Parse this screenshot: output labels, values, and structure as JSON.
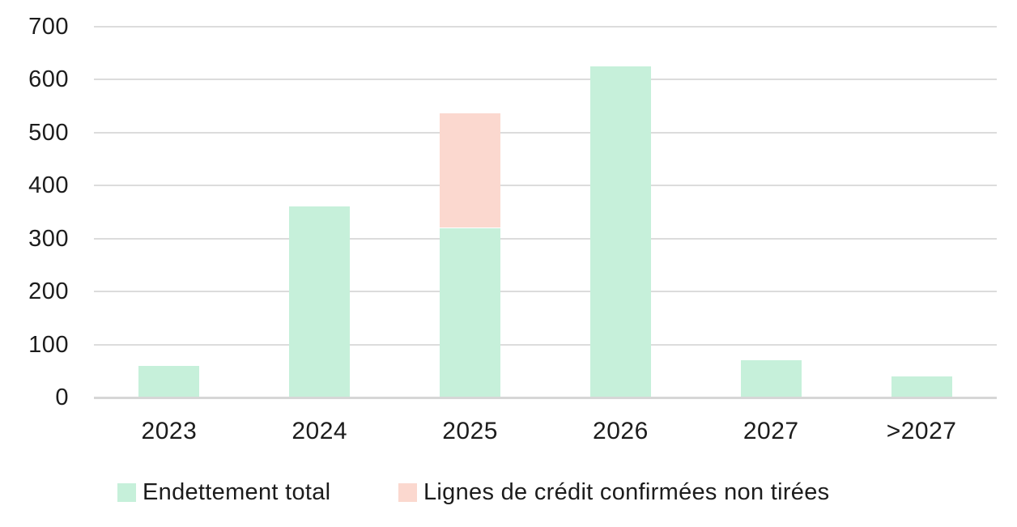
{
  "chart_data": {
    "type": "bar",
    "stacked": true,
    "title": "",
    "xlabel": "",
    "ylabel": "",
    "categories": [
      "2023",
      "2024",
      "2025",
      "2026",
      "2027",
      ">2027"
    ],
    "series": [
      {
        "name": "Endettement total",
        "color": "#c6f0da",
        "values": [
          60,
          360,
          320,
          625,
          70,
          40
        ]
      },
      {
        "name": "Lignes de crédit confirmées non tirées",
        "color": "#fbd8cf",
        "values": [
          0,
          0,
          217,
          0,
          0,
          0
        ]
      }
    ],
    "ylim": [
      0,
      700
    ],
    "yticks": [
      0,
      100,
      200,
      300,
      400,
      500,
      600,
      700
    ],
    "grid": true,
    "legend_position": "bottom",
    "colors": {
      "gridline": "#dcdcdc",
      "axis_line": "#d6d6d6",
      "text": "#1c1c1c",
      "background": "#ffffff"
    }
  }
}
